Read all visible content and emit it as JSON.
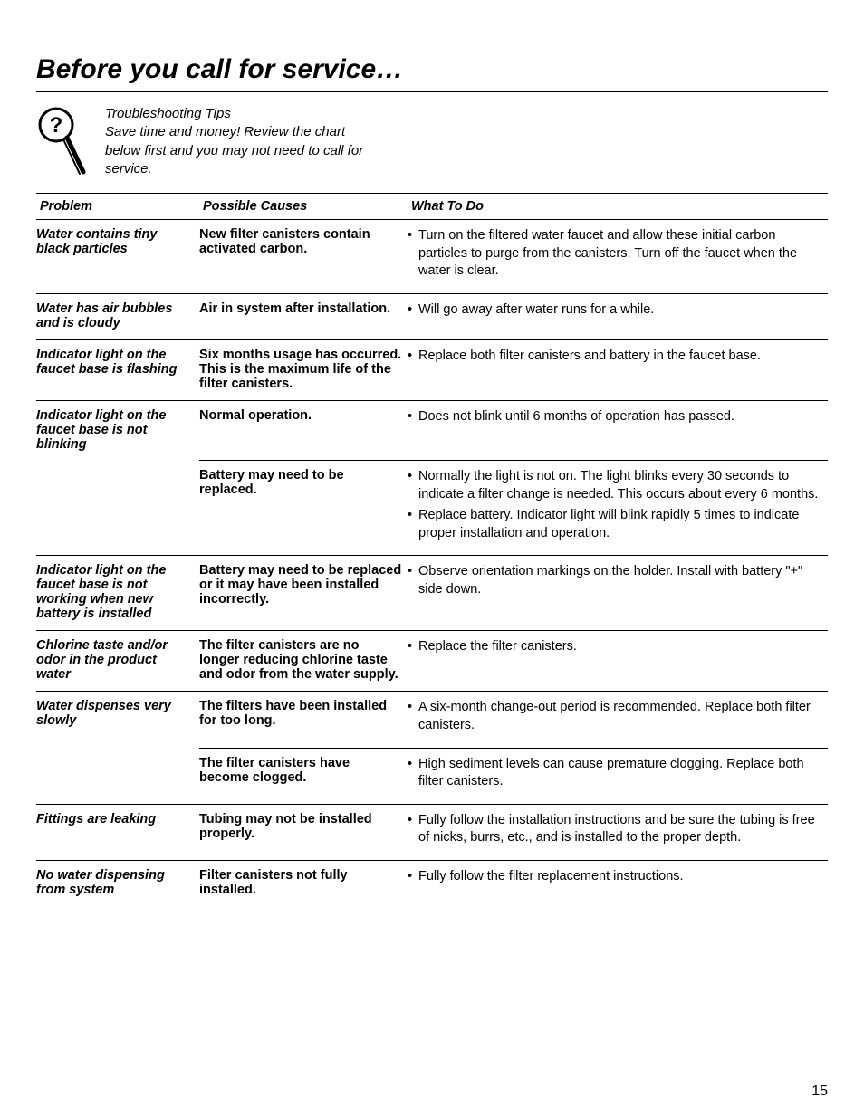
{
  "title": "Before you call for service…",
  "intro": {
    "heading": "Troubleshooting Tips",
    "body": "Save time and money! Review the chart below first and you may not need to call for service."
  },
  "columns": {
    "problem": "Problem",
    "cause": "Possible Causes",
    "action": "What To Do"
  },
  "rows": [
    {
      "problem": "Water contains tiny black particles",
      "cause": "New filter canisters contain activated carbon.",
      "actions": [
        "Turn on the filtered water faucet and allow these initial carbon particles to purge from the canisters. Turn off the faucet when the water is clear."
      ]
    },
    {
      "problem": "Water has air bubbles and is cloudy",
      "cause": "Air in system after installation.",
      "actions": [
        "Will go away after water runs for a while."
      ]
    },
    {
      "problem": "Indicator light on the faucet base is flashing",
      "cause": "Six months usage has occurred. This is the maximum life of the filter canisters.",
      "actions": [
        "Replace both filter canisters and battery in the faucet base."
      ]
    },
    {
      "problem": "Indicator light on the faucet base is not blinking",
      "cause": "Normal operation.",
      "actions": [
        "Does not blink until 6 months of operation has passed."
      ]
    },
    {
      "problem": "",
      "continuation": true,
      "cause": "Battery may need to be replaced.",
      "actions": [
        "Normally the light is not on. The light blinks every 30 seconds to indicate a filter change is needed. This occurs about every 6 months.",
        "Replace battery. Indicator light will blink rapidly 5 times to indicate proper installation and operation."
      ]
    },
    {
      "problem": "Indicator light on the faucet base is not working when new battery is installed",
      "cause": "Battery may need to be replaced or it may have been installed incorrectly.",
      "actions": [
        "Observe orientation markings on the holder. Install with battery \"+\" side down."
      ]
    },
    {
      "problem": "Chlorine taste and/or odor in the product water",
      "cause": "The filter canisters are no longer reducing chlorine taste and odor from the water supply.",
      "actions": [
        "Replace the filter canisters."
      ]
    },
    {
      "problem": "Water dispenses very slowly",
      "cause": "The filters have been installed for too long.",
      "actions": [
        "A six-month change-out period is recommended. Replace both filter canisters."
      ]
    },
    {
      "problem": "",
      "continuation": true,
      "cause": "The filter canisters have become clogged.",
      "actions": [
        "High sediment levels can cause premature clogging. Replace both filter canisters."
      ]
    },
    {
      "problem": "Fittings are leaking",
      "cause": "Tubing may not be installed properly.",
      "actions": [
        "Fully follow the installation instructions and be sure the tubing is free of nicks, burrs, etc., and is installed to the proper depth."
      ]
    },
    {
      "problem": "No water dispensing from system",
      "cause": "Filter canisters not fully installed.",
      "actions": [
        "Fully follow the filter replacement instructions."
      ]
    }
  ],
  "pageNumber": "15",
  "style": {
    "bg": "#ffffff",
    "fg": "#000000",
    "titleFontSize": 30,
    "bodyFontSize": 14.5,
    "introFontSize": 15,
    "colWidths": {
      "problem": 180,
      "cause": 230
    }
  }
}
